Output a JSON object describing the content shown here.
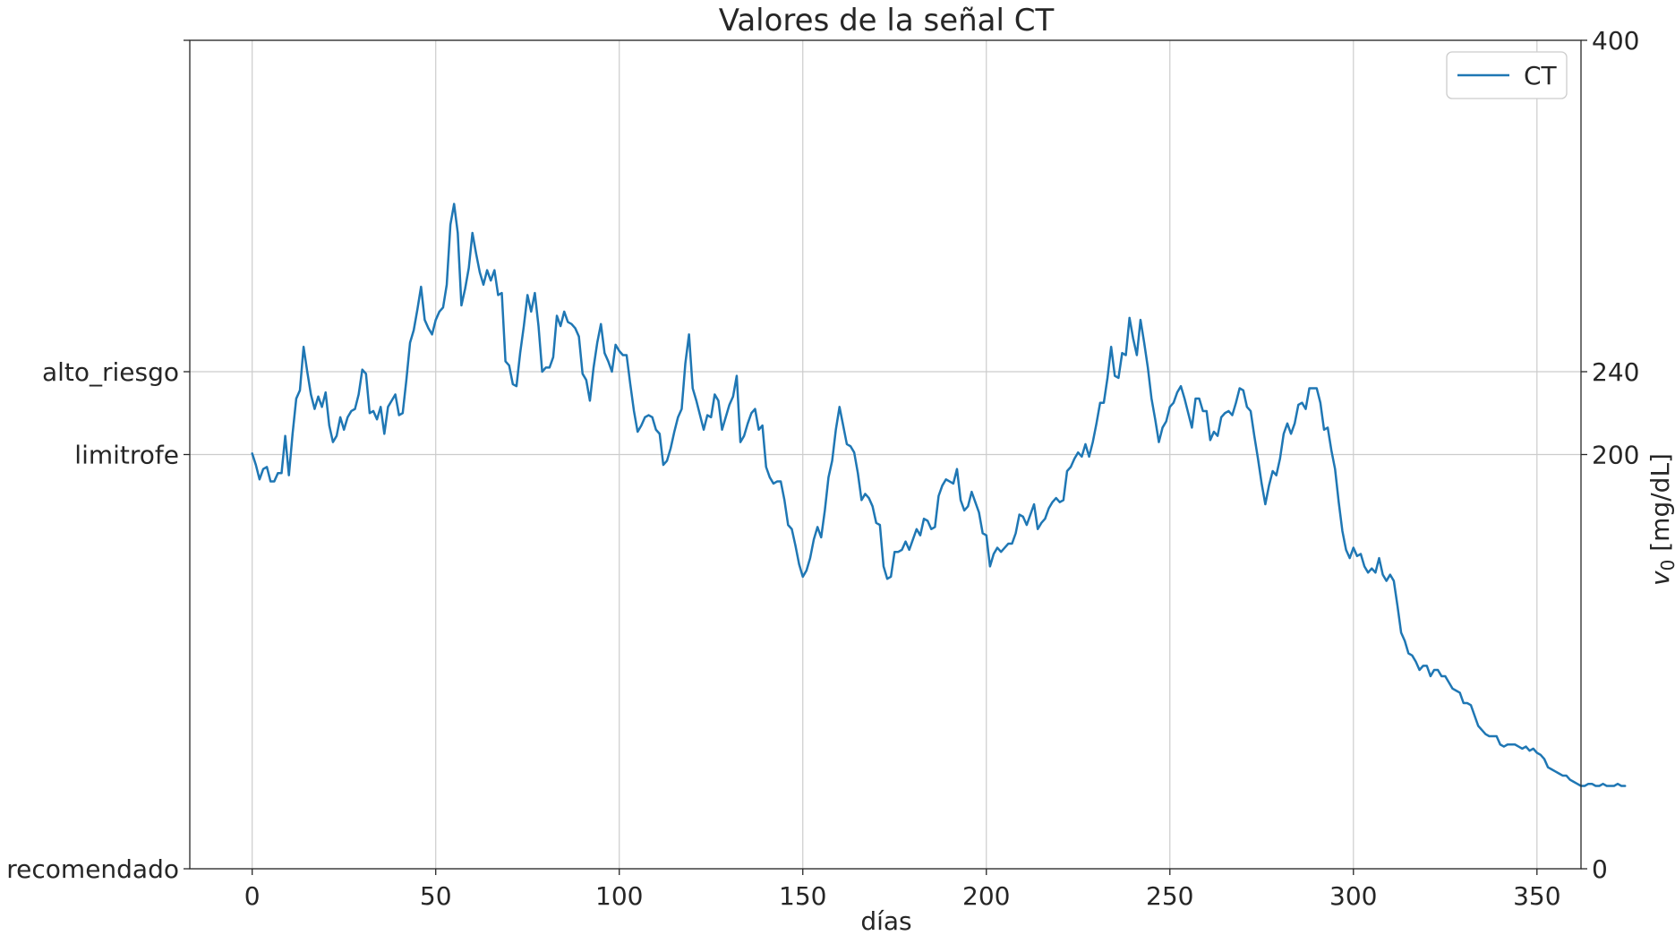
{
  "chart_data": {
    "type": "line",
    "title": "Valores de la señal CT",
    "xlabel": "días",
    "ylabel_right_prefix": "v",
    "ylabel_right_sub": "0",
    "ylabel_right_unit": " [mg/dL]",
    "xlim": [
      -17,
      362
    ],
    "ylim": [
      0,
      400
    ],
    "x_ticks": [
      0,
      50,
      100,
      150,
      200,
      250,
      300,
      350
    ],
    "y_left_ticks": [
      {
        "value": 0,
        "label": "recomendado"
      },
      {
        "value": 200,
        "label": "limitrofe"
      },
      {
        "value": 240,
        "label": "alto_riesgo"
      }
    ],
    "y_right_ticks": [
      {
        "value": 0,
        "label": "0"
      },
      {
        "value": 200,
        "label": "200"
      },
      {
        "value": 240,
        "label": "240"
      },
      {
        "value": 400,
        "label": "400"
      }
    ],
    "grid": true,
    "legend_position": "top-right",
    "colors": {
      "series": "#1f77b4",
      "grid": "#cccccc",
      "axes": "#262626"
    },
    "series": [
      {
        "name": "CT",
        "x_start": 0,
        "x_step": 1,
        "values": [
          200.5,
          195,
          188,
          193,
          194,
          187,
          187,
          191,
          191,
          209,
          190,
          210,
          227,
          231,
          252,
          240,
          229,
          222,
          228,
          223,
          230,
          214,
          206,
          209,
          218,
          212,
          218,
          221,
          222,
          229,
          241,
          239,
          220,
          221,
          217,
          223,
          210,
          223,
          226,
          229,
          219,
          220,
          236,
          254,
          260,
          270,
          281,
          265,
          261,
          258,
          265,
          269,
          271,
          282,
          311,
          321,
          307,
          272,
          280,
          290,
          307,
          297,
          288,
          282,
          289,
          284,
          289,
          277,
          278,
          245,
          243,
          234,
          233,
          249,
          262,
          277,
          269,
          278,
          262,
          240,
          242,
          242,
          247,
          267,
          262,
          269,
          264,
          263,
          261,
          257,
          239,
          236,
          226,
          242,
          254,
          263,
          249,
          245,
          240,
          253,
          250,
          248,
          248,
          234,
          221,
          211,
          214,
          218,
          219,
          218,
          212,
          210,
          195,
          197,
          203,
          211,
          218,
          222,
          244,
          258,
          232,
          226,
          219,
          212,
          219,
          218,
          229,
          226,
          212,
          218,
          224,
          228,
          238,
          206,
          209,
          215,
          220,
          222,
          212,
          214,
          194,
          189,
          186,
          187,
          187,
          178,
          166,
          164,
          156,
          147,
          141,
          144,
          150,
          159,
          165,
          160,
          173,
          189,
          197,
          212,
          223,
          214,
          205,
          204,
          201,
          191,
          178,
          181,
          179,
          175,
          167,
          166,
          146,
          140,
          141,
          153,
          153,
          154,
          158,
          154,
          159,
          164,
          161,
          169,
          168,
          164,
          165,
          180,
          185,
          188,
          187,
          186,
          193,
          178,
          173,
          175,
          182,
          177,
          172,
          162,
          161,
          146,
          152,
          155,
          153,
          155,
          157,
          157,
          162,
          171,
          170,
          166,
          171,
          176,
          164,
          167,
          169,
          174,
          177,
          179,
          177,
          178,
          192,
          194,
          198,
          201,
          199,
          205,
          199,
          206,
          215,
          225,
          225,
          237,
          252,
          238,
          237,
          249,
          248,
          266,
          256,
          248,
          265,
          254,
          242,
          227,
          217,
          206,
          213,
          216,
          223,
          225,
          230,
          233,
          227,
          220,
          213,
          227,
          227,
          221,
          221,
          207,
          211,
          209,
          218,
          220,
          221,
          219,
          225,
          232,
          231,
          223,
          221,
          209,
          198,
          186,
          176,
          185,
          192,
          190,
          198,
          210,
          215,
          210,
          215,
          224,
          225,
          222,
          232,
          232,
          232,
          225,
          212,
          213,
          202,
          193,
          177,
          163,
          154,
          150,
          155,
          151,
          152,
          146,
          143,
          145,
          143,
          150,
          142,
          139,
          142,
          139,
          127,
          114,
          110,
          104,
          103,
          100,
          96,
          98,
          98,
          93,
          96,
          96,
          93,
          93,
          90,
          87,
          86,
          85,
          80,
          80,
          79,
          74,
          69,
          67,
          65,
          64,
          64,
          64,
          60,
          59,
          60,
          60,
          60,
          59,
          58,
          59,
          57,
          58,
          56,
          55,
          53,
          49,
          48,
          47,
          46,
          45,
          45,
          43,
          42,
          41,
          40,
          40,
          41,
          41,
          40,
          40,
          41,
          40,
          40,
          40,
          41,
          40,
          40
        ],
        "chart_values_note": ""
      }
    ]
  }
}
